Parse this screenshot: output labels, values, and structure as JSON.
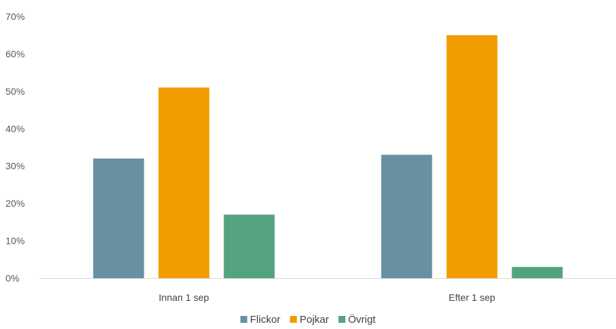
{
  "chart_data": {
    "type": "bar",
    "categories": [
      "Innan 1 sep",
      "Efter 1 sep"
    ],
    "series": [
      {
        "name": "Flickor",
        "color": "#6790A0",
        "values": [
          0.32,
          0.33
        ]
      },
      {
        "name": "Pojkar",
        "color": "#F39C00",
        "values": [
          0.51,
          0.65
        ]
      },
      {
        "name": "Övrigt",
        "color": "#52A37E",
        "values": [
          0.17,
          0.03
        ]
      }
    ],
    "ylim": [
      0,
      0.7
    ],
    "yticks": [
      0,
      0.1,
      0.2,
      0.3,
      0.4,
      0.5,
      0.6,
      0.7
    ],
    "ytick_labels": [
      "0%",
      "10%",
      "20%",
      "30%",
      "40%",
      "50%",
      "60%",
      "70%"
    ],
    "grid": false,
    "legend": "bottom-center"
  }
}
